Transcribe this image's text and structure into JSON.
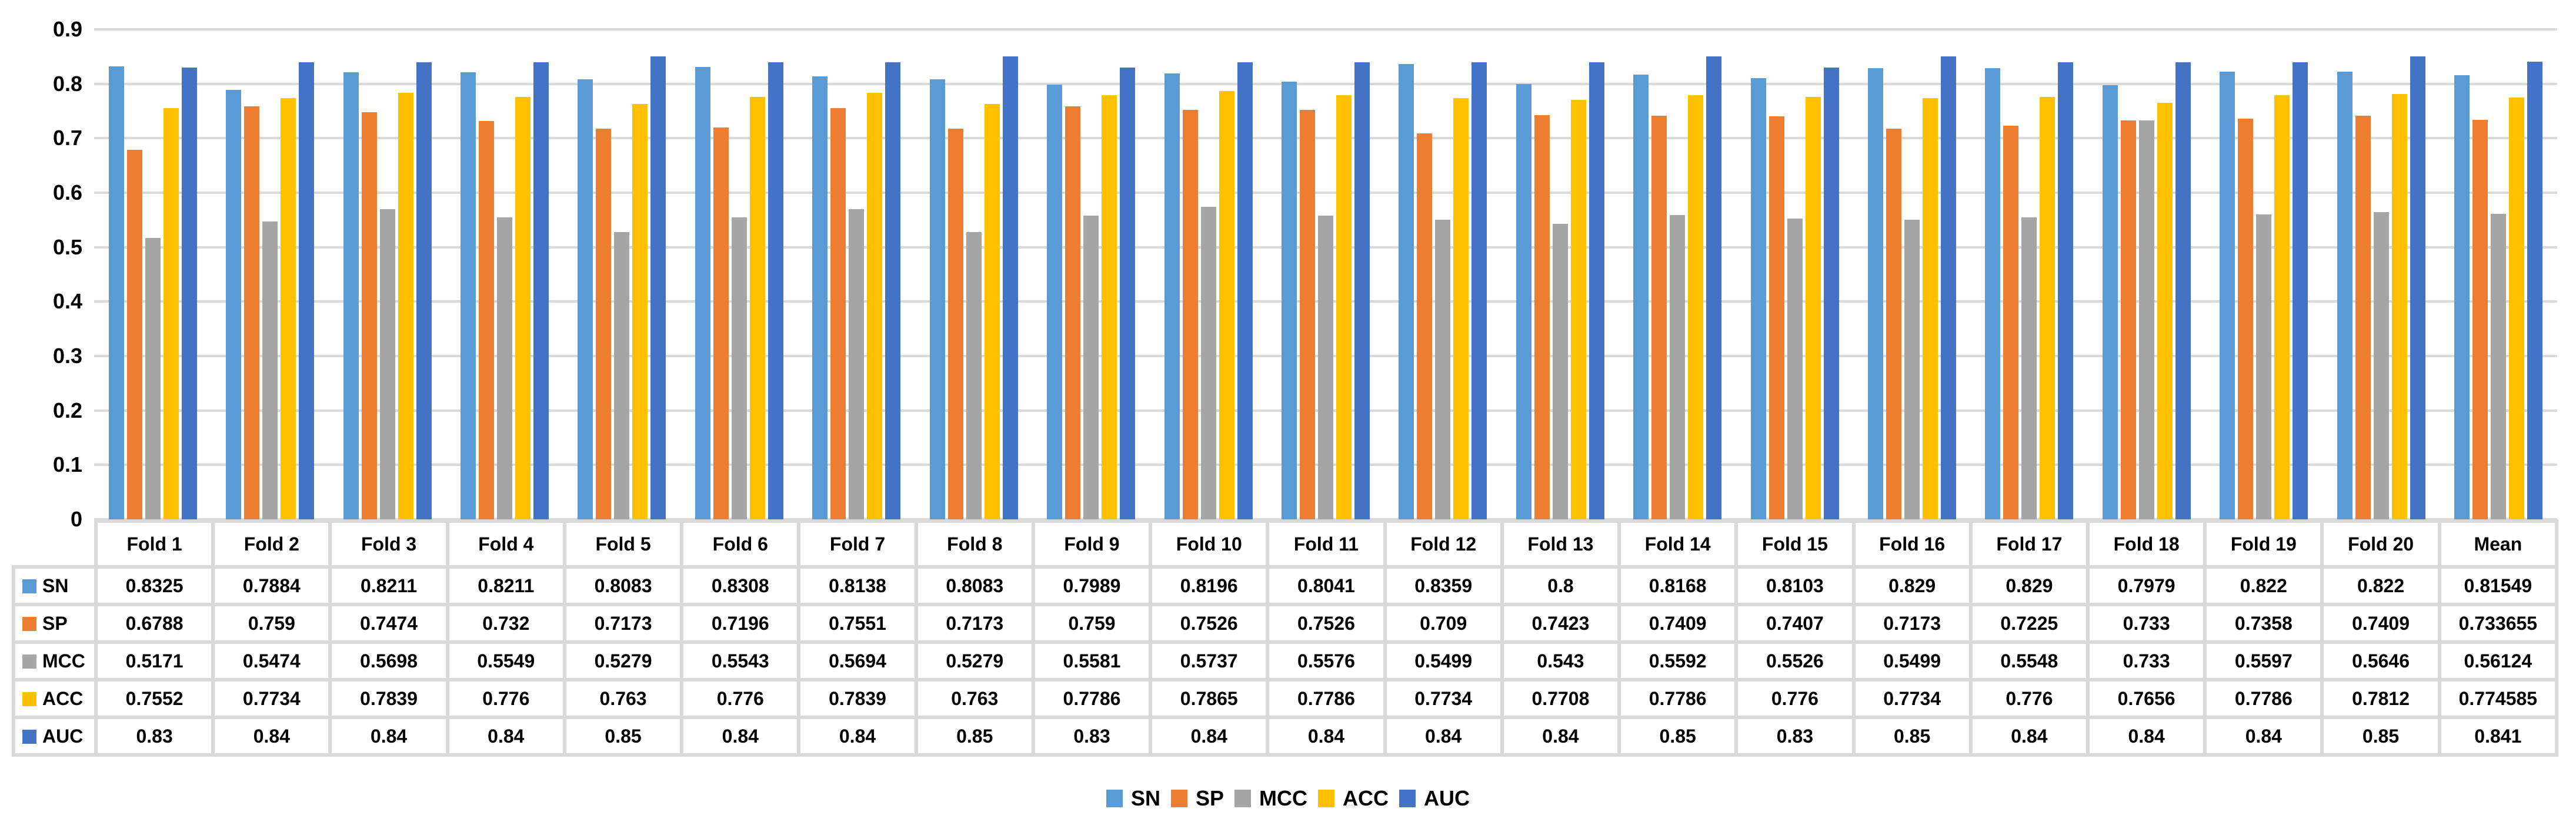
{
  "chart_data": {
    "type": "bar",
    "title": "",
    "xlabel": "",
    "ylabel": "",
    "ylim": [
      0,
      0.9
    ],
    "ytick_step": 0.1,
    "yticks": [
      "0",
      "0.1",
      "0.2",
      "0.3",
      "0.4",
      "0.5",
      "0.6",
      "0.7",
      "0.8",
      "0.9"
    ],
    "grid": true,
    "gridline_color": "#d9d9d9",
    "legend_position": "bottom",
    "data_table_attached": true,
    "categories": [
      "Fold 1",
      "Fold 2",
      "Fold 3",
      "Fold 4",
      "Fold 5",
      "Fold 6",
      "Fold 7",
      "Fold 8",
      "Fold 9",
      "Fold 10",
      "Fold 11",
      "Fold 12",
      "Fold 13",
      "Fold 14",
      "Fold 15",
      "Fold 16",
      "Fold 17",
      "Fold 18",
      "Fold 19",
      "Fold 20",
      "Mean"
    ],
    "series": [
      {
        "name": "SN",
        "color": "#5B9BD5",
        "values": [
          "0.8325",
          "0.7884",
          "0.8211",
          "0.8211",
          "0.8083",
          "0.8308",
          "0.8138",
          "0.8083",
          "0.7989",
          "0.8196",
          "0.8041",
          "0.8359",
          "0.8",
          "0.8168",
          "0.8103",
          "0.829",
          "0.829",
          "0.7979",
          "0.822",
          "0.822",
          "0.81549"
        ]
      },
      {
        "name": "SP",
        "color": "#ED7D31",
        "values": [
          "0.6788",
          "0.759",
          "0.7474",
          "0.732",
          "0.7173",
          "0.7196",
          "0.7551",
          "0.7173",
          "0.759",
          "0.7526",
          "0.7526",
          "0.709",
          "0.7423",
          "0.7409",
          "0.7407",
          "0.7173",
          "0.7225",
          "0.733",
          "0.7358",
          "0.7409",
          "0.733655"
        ]
      },
      {
        "name": "MCC",
        "color": "#A5A5A5",
        "values": [
          "0.5171",
          "0.5474",
          "0.5698",
          "0.5549",
          "0.5279",
          "0.5543",
          "0.5694",
          "0.5279",
          "0.5581",
          "0.5737",
          "0.5576",
          "0.5499",
          "0.543",
          "0.5592",
          "0.5526",
          "0.5499",
          "0.5548",
          "0.733",
          "0.5597",
          "0.5646",
          "0.56124"
        ]
      },
      {
        "name": "ACC",
        "color": "#FFC000",
        "values": [
          "0.7552",
          "0.7734",
          "0.7839",
          "0.776",
          "0.763",
          "0.776",
          "0.7839",
          "0.763",
          "0.7786",
          "0.7865",
          "0.7786",
          "0.7734",
          "0.7708",
          "0.7786",
          "0.776",
          "0.7734",
          "0.776",
          "0.7656",
          "0.7786",
          "0.7812",
          "0.774585"
        ]
      },
      {
        "name": "AUC",
        "color": "#4472C4",
        "values": [
          "0.83",
          "0.84",
          "0.84",
          "0.84",
          "0.85",
          "0.84",
          "0.84",
          "0.85",
          "0.83",
          "0.84",
          "0.84",
          "0.84",
          "0.84",
          "0.85",
          "0.83",
          "0.85",
          "0.84",
          "0.84",
          "0.84",
          "0.85",
          "0.841"
        ]
      }
    ]
  }
}
